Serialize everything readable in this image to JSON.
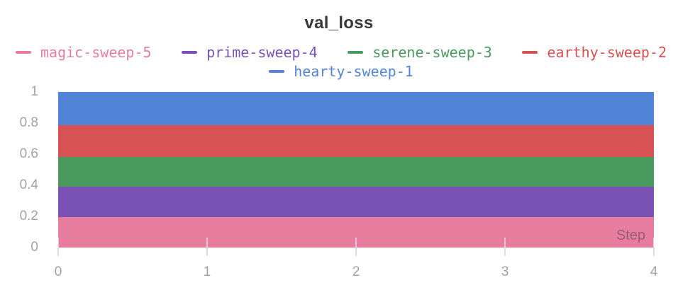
{
  "title": "val_loss",
  "axis": {
    "x_label_inside": "Step",
    "x_ticks": [
      "0",
      "1",
      "2",
      "3",
      "4"
    ],
    "y_ticks": [
      "1",
      "0.8",
      "0.6",
      "0.4",
      "0.2",
      "0"
    ]
  },
  "legend": {
    "rows": [
      [
        0,
        1,
        2,
        3
      ],
      [
        4
      ]
    ]
  },
  "colors": {
    "title_text": "#3a3a3a",
    "axis_label_text": "#a3a3a3",
    "tick_mark": "#dddddd",
    "axis_line": "#ebebeb",
    "background": "#ffffff"
  },
  "chart_data": {
    "type": "area",
    "title": "val_loss",
    "xlabel": "Step",
    "ylabel": "",
    "x": [
      0,
      1,
      2,
      3,
      4
    ],
    "xlim": [
      0,
      4
    ],
    "ylim": [
      0,
      1
    ],
    "grid": "x-ticks-only",
    "legend_position": "top",
    "series": [
      {
        "name": "magic-sweep-5",
        "color": "#E77D9E",
        "values": [
          0.195,
          0.195,
          0.195,
          0.195,
          0.195
        ]
      },
      {
        "name": "prime-sweep-4",
        "color": "#7A52B5",
        "values": [
          0.39,
          0.39,
          0.39,
          0.39,
          0.39
        ]
      },
      {
        "name": "serene-sweep-3",
        "color": "#4A9A5F",
        "values": [
          0.58,
          0.58,
          0.58,
          0.58,
          0.58
        ]
      },
      {
        "name": "earthy-sweep-2",
        "color": "#D75252",
        "values": [
          0.785,
          0.785,
          0.785,
          0.785,
          0.785
        ]
      },
      {
        "name": "hearty-sweep-1",
        "color": "#5285D8",
        "values": [
          1.0,
          1.0,
          1.0,
          1.0,
          1.0
        ]
      }
    ]
  }
}
